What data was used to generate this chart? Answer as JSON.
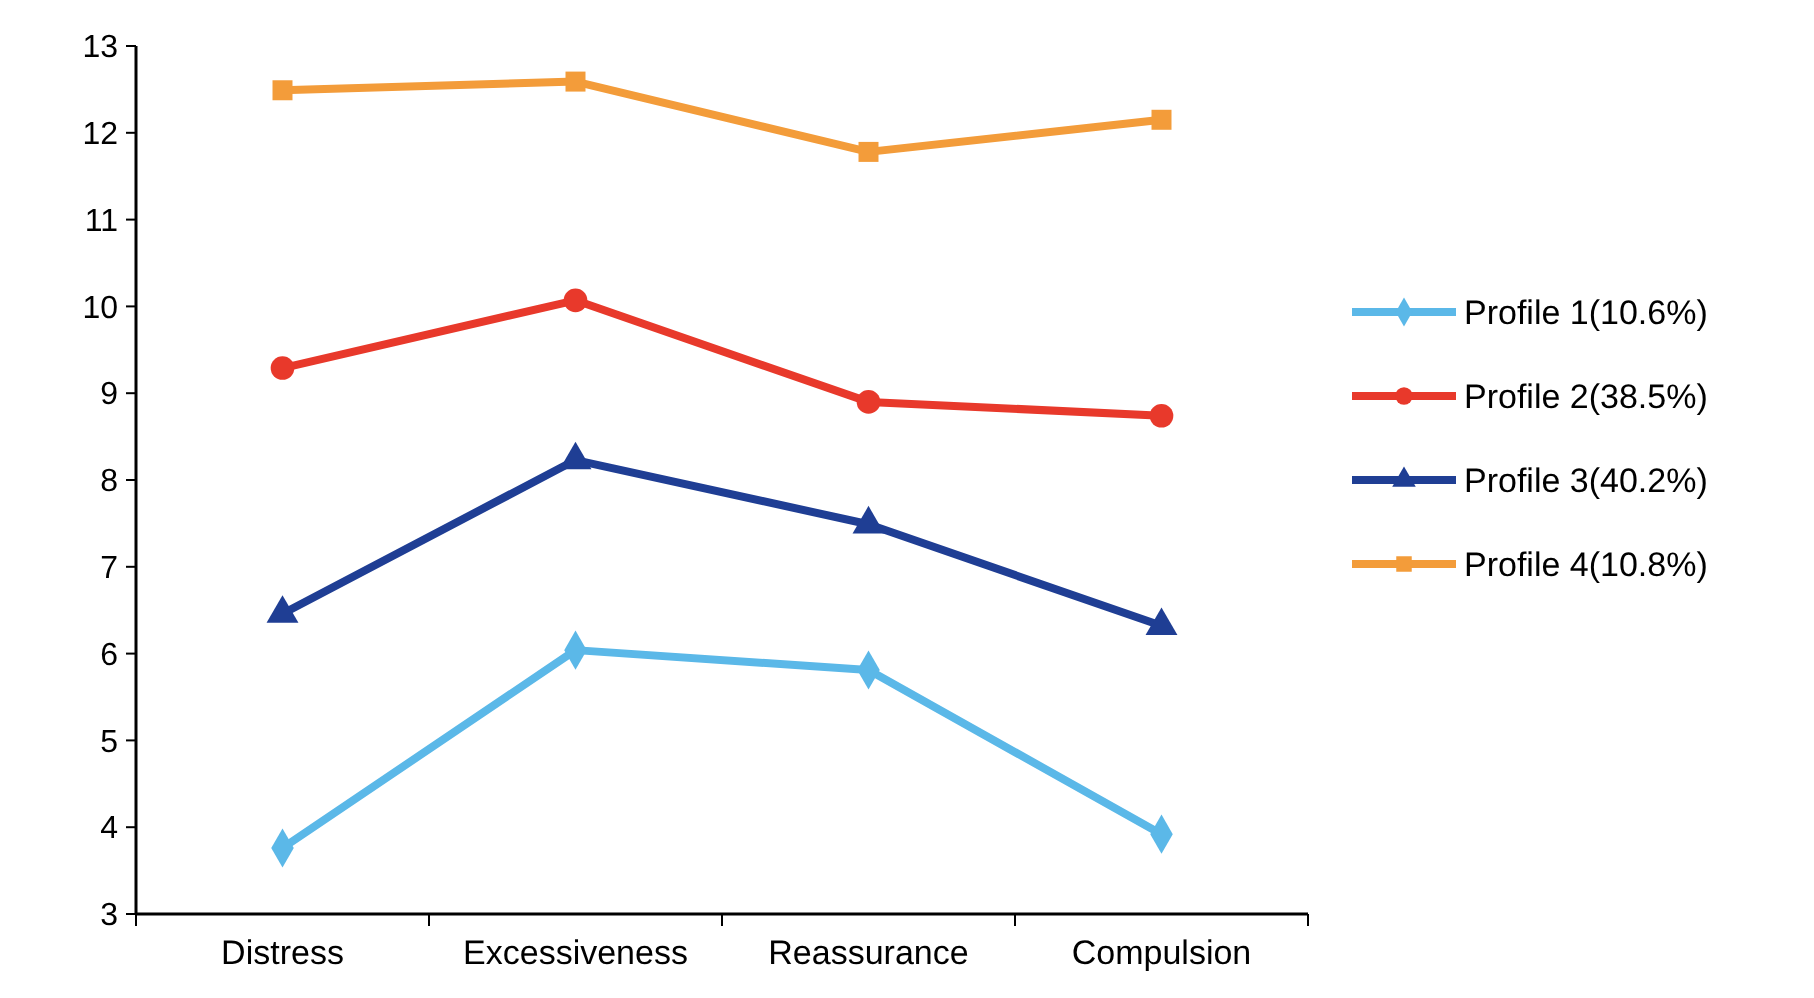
{
  "chart_data": {
    "type": "line",
    "categories": [
      "Distress",
      "Excessiveness",
      "Reassurance",
      "Compulsion"
    ],
    "ylim": [
      3,
      13
    ],
    "yticks": [
      3,
      4,
      5,
      6,
      7,
      8,
      9,
      10,
      11,
      12,
      13
    ],
    "grid": false,
    "legend": "right",
    "series": [
      {
        "name": "Profile 1(10.6%)",
        "color": "#5bb8e8",
        "marker": "diamond",
        "values": [
          3.76,
          6.04,
          5.81,
          3.92
        ]
      },
      {
        "name": "Profile 2(38.5%)",
        "color": "#e8392b",
        "marker": "circle",
        "values": [
          9.29,
          10.07,
          8.9,
          8.74
        ]
      },
      {
        "name": "Profile 3(40.2%)",
        "color": "#1f3e94",
        "marker": "triangle",
        "values": [
          6.46,
          8.23,
          7.49,
          6.32
        ]
      },
      {
        "name": "Profile 4(10.8%)",
        "color": "#f39c3a",
        "marker": "square",
        "values": [
          12.49,
          12.59,
          11.78,
          12.15
        ]
      }
    ]
  }
}
